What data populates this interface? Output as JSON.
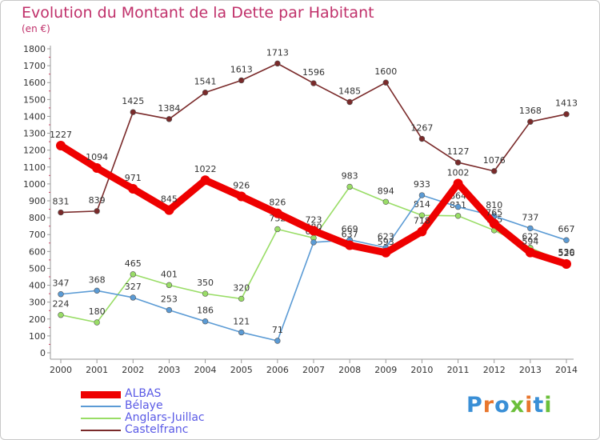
{
  "title": "Evolution du Montant de la Dette par Habitant",
  "unit": "(en €)",
  "logo": {
    "text": "Proxiti",
    "letter_colors": [
      "#3a8fd6",
      "#e8762d",
      "#3a8fd6",
      "#6bbf3a",
      "#e8762d",
      "#3a8fd6",
      "#6bbf3a"
    ]
  },
  "chart_data": {
    "type": "line",
    "x": [
      "2000",
      "2001",
      "2002",
      "2003",
      "2004",
      "2005",
      "2006",
      "2007",
      "2008",
      "2009",
      "2010",
      "2011",
      "2012",
      "2013",
      "2014"
    ],
    "ylim": [
      0,
      1800
    ],
    "yticks": [
      0,
      100,
      200,
      300,
      400,
      500,
      600,
      700,
      800,
      900,
      1000,
      1100,
      1200,
      1300,
      1400,
      1500,
      1600,
      1700,
      1800
    ],
    "grid": false,
    "legend_position": "bottom-left",
    "series": [
      {
        "name": "Castelfranc",
        "color": "#7a2a2a",
        "values": [
          831,
          839,
          1425,
          1384,
          1541,
          1613,
          1713,
          1596,
          1485,
          1600,
          1267,
          1127,
          1076,
          1368,
          1413
        ]
      },
      {
        "name": "Anglars-Juillac",
        "color": "#99dd66",
        "values": [
          224,
          180,
          465,
          401,
          350,
          320,
          732,
          680,
          983,
          894,
          814,
          811,
          725,
          622,
          530
        ]
      },
      {
        "name": "Bélaye",
        "color": "#5b9bd5",
        "values": [
          347,
          368,
          327,
          253,
          186,
          121,
          71,
          654,
          669,
          623,
          933,
          864,
          810,
          737,
          667
        ]
      },
      {
        "name": "ALBAS",
        "color": "#ee0000",
        "values": [
          1227,
          1094,
          971,
          845,
          1022,
          926,
          826,
          723,
          637,
          593,
          718,
          1002,
          765,
          594,
          526
        ]
      }
    ]
  }
}
